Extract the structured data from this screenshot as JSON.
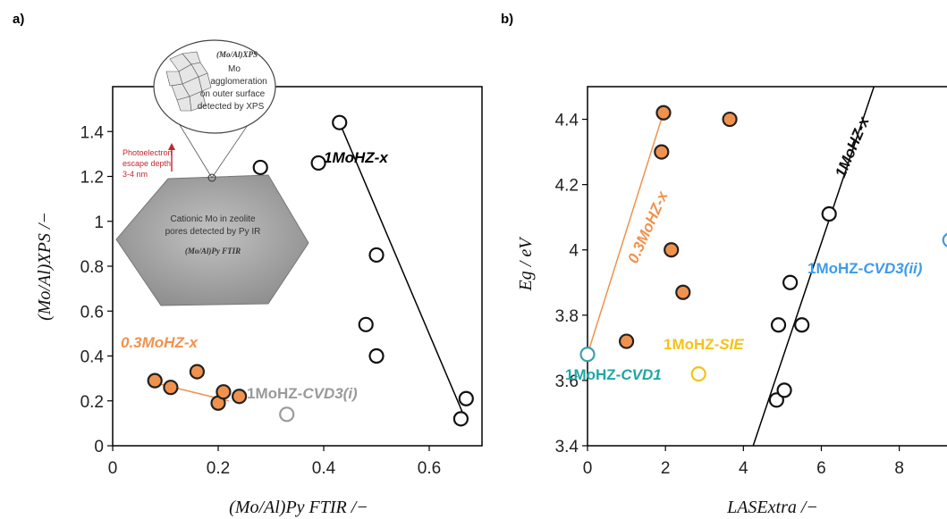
{
  "chart_data": [
    {
      "panel": "a)",
      "type": "scatter",
      "xlabel": "(Mo/Al)Py FTIR /−",
      "ylabel": "(Mo/Al)XPS /−",
      "xlim": [
        0,
        0.7
      ],
      "ylim": [
        0,
        1.6
      ],
      "xticks": [
        "0",
        "0.2",
        "0.4",
        "0.6"
      ],
      "yticks": [
        "0",
        "0.2",
        "0.4",
        "0.6",
        "0.8",
        "1",
        "1.2",
        "1.4"
      ],
      "series": [
        {
          "name": "1MoHZ-x",
          "color": "#111111",
          "fill": "#ffffff",
          "points": [
            [
              0.28,
              1.24
            ],
            [
              0.39,
              1.26
            ],
            [
              0.43,
              1.44
            ],
            [
              0.48,
              0.54
            ],
            [
              0.5,
              0.85
            ],
            [
              0.5,
              0.4
            ],
            [
              0.66,
              0.12
            ],
            [
              0.67,
              0.21
            ]
          ],
          "fit": [
            [
              0.43,
              1.44
            ],
            [
              0.67,
              0.11
            ]
          ]
        },
        {
          "name": "0.3MoHZ-x",
          "color": "#222222",
          "fill": "#f0924e",
          "points": [
            [
              0.08,
              0.29
            ],
            [
              0.11,
              0.26
            ],
            [
              0.16,
              0.33
            ],
            [
              0.2,
              0.19
            ],
            [
              0.21,
              0.24
            ],
            [
              0.24,
              0.22
            ]
          ],
          "fit": [
            [
              0.08,
              0.28
            ],
            [
              0.22,
              0.2
            ]
          ],
          "fit_color": "#f0924e"
        },
        {
          "name": "1MoHZ-CVD3(i)",
          "color": "#9a9a9a",
          "fill": "#ffffff",
          "points": [
            [
              0.33,
              0.14
            ]
          ]
        }
      ],
      "annotations": {
        "a1": {
          "prefix": "1",
          "suffix": "MoHZ-x",
          "color": "#111111"
        },
        "a2": {
          "prefix": "0.3",
          "suffix": "MoHZ-x",
          "color": "#f0924e"
        },
        "a3": {
          "prefix": "1MoHZ-",
          "suffix": "CVD3(i)",
          "color": "#9a9a9a"
        }
      },
      "inset": {
        "bubble_title": "(Mo/Al)XPS",
        "bubble_lines": [
          "Mo",
          "agglomeration",
          "on outer surface",
          "detected by XPS"
        ],
        "photoelectron_lines": [
          "Photoelectron",
          "escape depth",
          "3-4 nm"
        ],
        "crystal_lines": [
          "Cationic Mo in zeolite",
          "pores detected by Py IR"
        ],
        "crystal_formula": "(Mo/Al)Py FTIR"
      }
    },
    {
      "panel": "b)",
      "type": "scatter",
      "xlabel": "LASExtra /−",
      "ylabel": "Eg / eV",
      "xlim": [
        0,
        9.5
      ],
      "ylim": [
        3.4,
        4.5
      ],
      "xticks": [
        "0",
        "2",
        "4",
        "6",
        "8"
      ],
      "yticks": [
        "3.4",
        "3.6",
        "3.8",
        "4",
        "4.2",
        "4.4"
      ],
      "series": [
        {
          "name": "0.3MoHZ-x",
          "color": "#222222",
          "fill": "#f0924e",
          "points": [
            [
              1.0,
              3.72
            ],
            [
              1.9,
              4.3
            ],
            [
              1.95,
              4.42
            ],
            [
              2.15,
              4.0
            ],
            [
              2.45,
              3.87
            ],
            [
              3.65,
              4.4
            ]
          ],
          "fit": [
            [
              0.0,
              3.68
            ],
            [
              2.0,
              4.44
            ]
          ],
          "fit_color": "#f0924e"
        },
        {
          "name": "1MoHZ-x",
          "color": "#111111",
          "fill": "#ffffff",
          "points": [
            [
              4.85,
              3.54
            ],
            [
              5.05,
              3.57
            ],
            [
              4.9,
              3.77
            ],
            [
              5.2,
              3.9
            ],
            [
              5.5,
              3.77
            ],
            [
              6.2,
              4.11
            ]
          ],
          "fit": [
            [
              4.25,
              3.4
            ],
            [
              7.35,
              4.5
            ]
          ]
        },
        {
          "name": "1MoHZ-CVD1",
          "color": "#3aa0a8",
          "fill": "#ffffff",
          "points": [
            [
              0.0,
              3.68
            ]
          ]
        },
        {
          "name": "1MoHZ-SIE",
          "color": "#f2c318",
          "fill": "#ffffff",
          "points": [
            [
              2.85,
              3.62
            ]
          ]
        },
        {
          "name": "1MoHZ-CVD3(ii)",
          "color": "#3d9be9",
          "fill": "#ffffff",
          "points": [
            [
              9.3,
              4.03
            ]
          ]
        }
      ],
      "annotations": {
        "b1": {
          "prefix": "0.3",
          "suffix": "MoHZ-x",
          "color": "#f0924e"
        },
        "b2": {
          "prefix": "1",
          "suffix": "MoHZ-x",
          "color": "#111111"
        },
        "b3": {
          "prefix": "1MoHZ-",
          "suffix": "CVD3(ii)",
          "color": "#3d9be9"
        },
        "b4": {
          "prefix": "1MoHZ-",
          "suffix": "SIE",
          "color": "#f2c318"
        },
        "b5": {
          "prefix": "1MoHZ-",
          "suffix": "CVD1",
          "color": "#1fa6a6"
        }
      }
    }
  ]
}
